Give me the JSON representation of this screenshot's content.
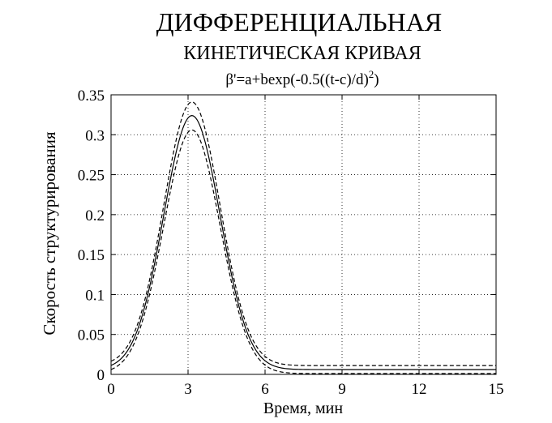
{
  "chart_data": {
    "type": "line",
    "title_line1": "ДИФФЕРЕНЦИАЛЬНАЯ",
    "title_line2": "КИНЕТИЧЕСКАЯ КРИВАЯ",
    "formula_main": "β'=a+bexp(-0.5((t-c)/d)",
    "formula_exp": "2",
    "formula_close": ")",
    "xlabel": "Время, мин",
    "ylabel": "Скорость структурирования",
    "xlim": [
      0,
      15
    ],
    "ylim": [
      0,
      0.35
    ],
    "xticks": [
      0,
      3,
      6,
      9,
      12,
      15
    ],
    "xtick_labels": [
      "0",
      "3",
      "6",
      "9",
      "12",
      "15"
    ],
    "yticks": [
      0,
      0.05,
      0.1,
      0.15,
      0.2,
      0.25,
      0.3,
      0.35
    ],
    "ytick_labels": [
      "0",
      "0.05",
      "0.1",
      "0.15",
      "0.2",
      "0.25",
      "0.3",
      "0.35"
    ],
    "grid": true,
    "series": [
      {
        "style": "dashed",
        "a": 0.011,
        "b": 0.33,
        "c": 3.15,
        "d": 1.1
      },
      {
        "style": "solid",
        "a": 0.006,
        "b": 0.318,
        "c": 3.15,
        "d": 1.1
      },
      {
        "style": "dashed",
        "a": 0.001,
        "b": 0.305,
        "c": 3.15,
        "d": 1.1
      }
    ]
  }
}
